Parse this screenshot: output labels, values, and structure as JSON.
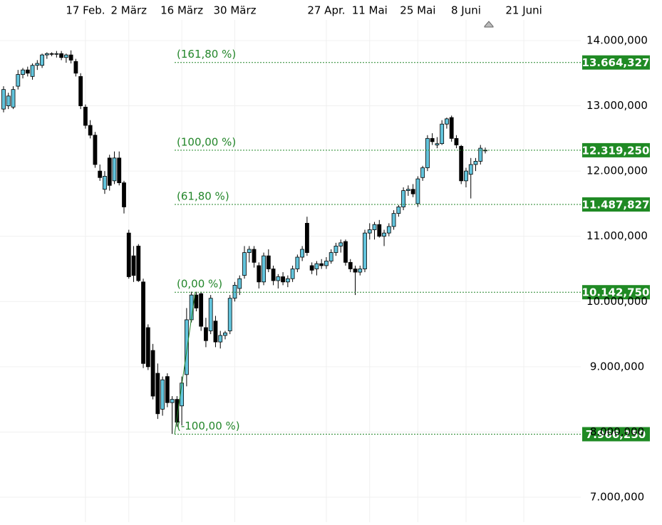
{
  "chart_data": {
    "type": "candlestick",
    "xlim": [
      -0.74,
      119.82
    ],
    "xticks": [
      {
        "value": 17,
        "label": "17 Feb."
      },
      {
        "value": 26,
        "label": "2 März"
      },
      {
        "value": 37,
        "label": "16 März"
      },
      {
        "value": 48,
        "label": "30 März"
      },
      {
        "value": 67,
        "label": "27 Apr."
      },
      {
        "value": 76,
        "label": "11 Mai"
      },
      {
        "value": 86,
        "label": "25 Mai"
      },
      {
        "value": 96,
        "label": "8 Juni"
      },
      {
        "value": 108,
        "label": "21 Juni"
      }
    ],
    "ylim": [
      6618000,
      14622000
    ],
    "yticks": [
      {
        "value": 7000000,
        "label": "7.000,000"
      },
      {
        "value": 8000000,
        "label": "8.000,000"
      },
      {
        "value": 9000000,
        "label": "9.000,000"
      },
      {
        "value": 10000000,
        "label": "10.000,000"
      },
      {
        "value": 11000000,
        "label": "11.000,000"
      },
      {
        "value": 12000000,
        "label": "12.000,000"
      },
      {
        "value": 13000000,
        "label": "13.000,000"
      },
      {
        "value": 14000000,
        "label": "14.000,000"
      }
    ],
    "grid": true,
    "up_color": "#62c4dc",
    "down_color": "#000000",
    "open": [
      12950000,
      13000000,
      12980000,
      13300000,
      13480000,
      13550000,
      13450000,
      13620000,
      13620000,
      13780000,
      13800000,
      13790000,
      13800000,
      13740000,
      13780000,
      13680000,
      13450000,
      12980000,
      12700000,
      12550000,
      12000000,
      11720000,
      12200000,
      11850000,
      12200000,
      11820000,
      11050000,
      10700000,
      10850000,
      10300000,
      9600000,
      9250000,
      8900000,
      8350000,
      8850000,
      8450000,
      8500000,
      8400000,
      8880000,
      9720000,
      10100000,
      10120000,
      9600000,
      9550000,
      9700000,
      9380000,
      9480000,
      9550000,
      10050000,
      10200000,
      10400000,
      10750000,
      10800000,
      10550000,
      10300000,
      10700000,
      10500000,
      10320000,
      10380000,
      10300000,
      10350000,
      10500000,
      10680000,
      11200000,
      10550000,
      10500000,
      10580000,
      10550000,
      10620000,
      10750000,
      10850000,
      10920000,
      10600000,
      10500000,
      10450000,
      10500000,
      11050000,
      11100000,
      11180000,
      11000000,
      11050000,
      11150000,
      11350000,
      11450000,
      11700000,
      11720000,
      11500000,
      11900000,
      12050000,
      12500000,
      12400000,
      12420000,
      12720000,
      12820000,
      12500000,
      12380000,
      11850000,
      11950000,
      12100000,
      12150000,
      12320000
    ],
    "high": [
      13300000,
      13200000,
      13300000,
      13550000,
      13580000,
      13600000,
      13650000,
      13700000,
      13800000,
      13820000,
      13820000,
      13840000,
      13840000,
      13800000,
      13850000,
      13720000,
      13500000,
      13020000,
      12780000,
      12600000,
      12100000,
      12000000,
      12250000,
      12300000,
      12300000,
      11850000,
      11100000,
      10850000,
      10880000,
      10350000,
      9650000,
      9350000,
      9050000,
      8850000,
      8900000,
      8550000,
      8550000,
      8850000,
      9900000,
      10150000,
      10150000,
      10150000,
      9750000,
      10100000,
      9780000,
      9550000,
      9550000,
      10100000,
      10300000,
      10400000,
      10850000,
      10850000,
      10850000,
      10600000,
      10750000,
      10800000,
      10550000,
      10420000,
      10450000,
      10400000,
      10550000,
      10720000,
      10850000,
      11300000,
      10600000,
      10620000,
      10650000,
      10680000,
      10800000,
      10900000,
      10950000,
      10950000,
      10650000,
      10550000,
      10550000,
      11100000,
      11200000,
      11220000,
      11250000,
      11100000,
      11200000,
      11400000,
      11480000,
      11750000,
      11780000,
      11800000,
      11920000,
      12080000,
      12550000,
      12580000,
      12520000,
      12780000,
      12820000,
      12850000,
      12550000,
      12400000,
      12050000,
      12200000,
      12200000,
      12400000,
      12360000
    ],
    "low": [
      12900000,
      12950000,
      12950000,
      13250000,
      13420000,
      13450000,
      13400000,
      13550000,
      13580000,
      13720000,
      13760000,
      13740000,
      13700000,
      13660000,
      13650000,
      13450000,
      12950000,
      12650000,
      12500000,
      12050000,
      11850000,
      11650000,
      11700000,
      11800000,
      11780000,
      11350000,
      10350000,
      10300000,
      10300000,
      8980000,
      8950000,
      8500000,
      8200000,
      8250000,
      8380000,
      7970000,
      8080000,
      8100000,
      8700000,
      9680000,
      9850000,
      9550000,
      9300000,
      9500000,
      9300000,
      9280000,
      9420000,
      9500000,
      10000000,
      10100000,
      10350000,
      10600000,
      10520000,
      10200000,
      10250000,
      10450000,
      10250000,
      10200000,
      10250000,
      10220000,
      10300000,
      10450000,
      10620000,
      10700000,
      10420000,
      10400000,
      10500000,
      10500000,
      10580000,
      10700000,
      10750000,
      10550000,
      10450000,
      10100000,
      10400000,
      10450000,
      10950000,
      10950000,
      10980000,
      10850000,
      11000000,
      11100000,
      11300000,
      11400000,
      11620000,
      11600000,
      11450000,
      11850000,
      12000000,
      12400000,
      12350000,
      12400000,
      12650000,
      12450000,
      12350000,
      11800000,
      11750000,
      11580000,
      12000000,
      12100000,
      12270000
    ],
    "close": [
      13250000,
      13150000,
      13250000,
      13480000,
      13550000,
      13500000,
      13620000,
      13650000,
      13780000,
      13800000,
      13790000,
      13800000,
      13740000,
      13780000,
      13700000,
      13500000,
      13000000,
      12700000,
      12550000,
      12100000,
      11900000,
      11920000,
      11780000,
      12200000,
      11820000,
      11450000,
      10380000,
      10400000,
      10320000,
      9050000,
      9000000,
      8550000,
      8280000,
      8800000,
      8450000,
      8500000,
      8150000,
      8750000,
      9720000,
      10100000,
      9900000,
      9620000,
      9400000,
      10050000,
      9380000,
      9480000,
      9520000,
      10050000,
      10250000,
      10350000,
      10750000,
      10800000,
      10600000,
      10300000,
      10700000,
      10500000,
      10320000,
      10380000,
      10300000,
      10350000,
      10500000,
      10680000,
      10800000,
      10750000,
      10480000,
      10580000,
      10550000,
      10620000,
      10750000,
      10850000,
      10900000,
      10600000,
      10500000,
      10450000,
      10500000,
      11050000,
      11100000,
      11180000,
      11000000,
      11050000,
      11150000,
      11350000,
      11450000,
      11700000,
      11720000,
      11650000,
      11880000,
      12050000,
      12500000,
      12450000,
      12420000,
      12720000,
      12800000,
      12500000,
      12400000,
      11850000,
      12000000,
      12100000,
      12150000,
      12350000,
      12320000
    ],
    "fib_levels": {
      "labels": [
        "(161,80 %)",
        "(100,00 %)",
        "(61,80 %)",
        "(0,00 %)",
        "(-100,00 %)"
      ],
      "values": [
        13664327,
        12319250,
        11487827,
        10142750,
        7966250
      ],
      "value_labels": [
        "13.664,327",
        "12.319,250",
        "11.487,827",
        "10.142,750",
        "7.966,250"
      ],
      "color": "#23862a",
      "tag_color": "#1f8a24"
    }
  }
}
